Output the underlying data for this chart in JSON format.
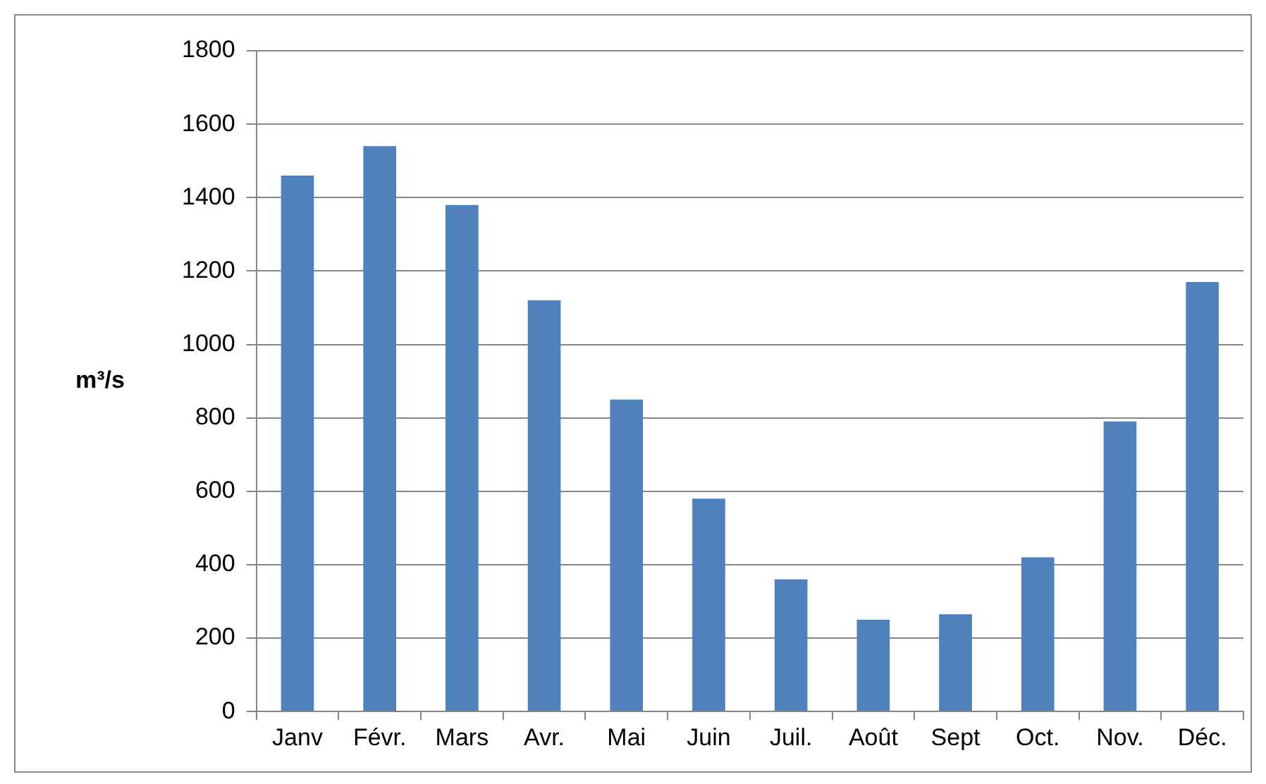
{
  "chart_data": {
    "type": "bar",
    "ylabel": "m³/s",
    "categories": [
      "Janv",
      "Févr.",
      "Mars",
      "Avr.",
      "Mai",
      "Juin",
      "Juil.",
      "Août",
      "Sept",
      "Oct.",
      "Nov.",
      "Déc."
    ],
    "values": [
      1460,
      1540,
      1380,
      1120,
      850,
      580,
      360,
      250,
      265,
      420,
      790,
      1170
    ],
    "color": "#4f81bd",
    "ylim": [
      0,
      1800
    ],
    "yticks": [
      0,
      200,
      400,
      600,
      800,
      1000,
      1200,
      1400,
      1600,
      1800
    ],
    "grid": "y",
    "legend": false
  }
}
